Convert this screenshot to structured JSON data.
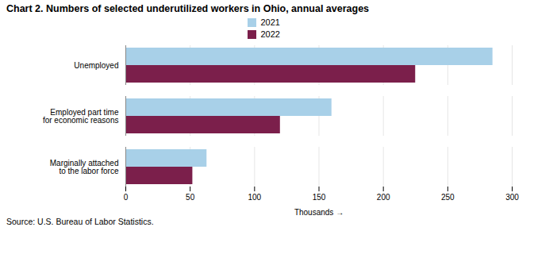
{
  "chart_data": {
    "type": "bar",
    "orientation": "horizontal",
    "title": "Chart 2.  Numbers of selected underutilized workers in Ohio, annual averages",
    "categories": [
      "Marginally attached\nto the labor force",
      "Employed part time\nfor economic reasons",
      "Unemployed"
    ],
    "series": [
      {
        "name": "2021",
        "color": "#a8d0e8",
        "values": [
          63,
          160,
          285
        ]
      },
      {
        "name": "2022",
        "color": "#7b1f4b",
        "values": [
          52,
          120,
          225
        ]
      }
    ],
    "xlabel": "Thousands",
    "xlim": [
      0,
      300
    ],
    "xticks": [
      0,
      50,
      100,
      150,
      200,
      250,
      300
    ],
    "grid": true,
    "legend": "top",
    "source": "Source: U.S. Bureau of Labor Statistics."
  }
}
